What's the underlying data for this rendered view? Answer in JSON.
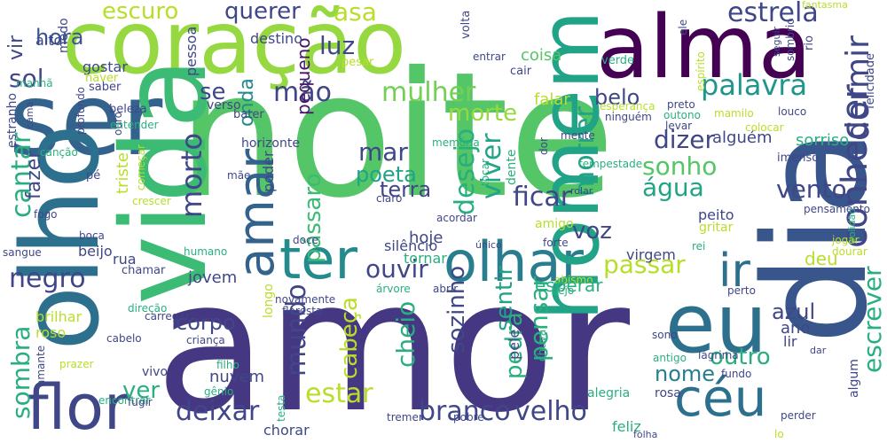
{
  "words": [
    {
      "text": "amor",
      "color": "#453781"
    },
    {
      "text": "noite",
      "color": "#55c667"
    },
    {
      "text": "coração",
      "color": "#95d840"
    },
    {
      "text": "alma",
      "color": "#440154"
    },
    {
      "text": "ser",
      "color": "#33638d"
    },
    {
      "text": "vida",
      "color": "#3cbb75"
    },
    {
      "text": "olho",
      "color": "#2d708e"
    },
    {
      "text": "olhar",
      "color": "#287d8e"
    },
    {
      "text": "ter",
      "color": "#238a8d"
    },
    {
      "text": "eu",
      "color": "#2d708e"
    },
    {
      "text": "dia",
      "color": "#39568c"
    },
    {
      "text": "homem",
      "color": "#20a386"
    },
    {
      "text": "flor",
      "color": "#3f4788"
    },
    {
      "text": "céu",
      "color": "#2d708e"
    },
    {
      "text": "amar",
      "color": "#33638d"
    },
    {
      "text": "ir",
      "color": "#2d708e"
    },
    {
      "text": "mulher",
      "color": "#73d055"
    },
    {
      "text": "palavra",
      "color": "#1f968b"
    },
    {
      "text": "morte",
      "color": "#95d840"
    },
    {
      "text": "mão",
      "color": "#3f4788"
    },
    {
      "text": "estrela",
      "color": "#3f4788"
    },
    {
      "text": "escuro",
      "color": "#b8de29"
    },
    {
      "text": "querer",
      "color": "#3f4788"
    },
    {
      "text": "asa",
      "color": "#b8de29"
    },
    {
      "text": "belo",
      "color": "#3f4788"
    },
    {
      "text": "hora",
      "color": "#39568c"
    },
    {
      "text": "sol",
      "color": "#3f4788"
    },
    {
      "text": "luz",
      "color": "#3f4788"
    },
    {
      "text": "onda",
      "color": "#238a8d"
    },
    {
      "text": "se",
      "color": "#3f4788"
    },
    {
      "text": "vir",
      "color": "#3f4788"
    },
    {
      "text": "alto",
      "color": "#3f4788"
    },
    {
      "text": "pequeno",
      "color": "#481567"
    },
    {
      "text": "dormir",
      "color": "#404788"
    },
    {
      "text": "conhecer",
      "color": "#3f4788"
    },
    {
      "text": "nome",
      "color": "#287d8e"
    },
    {
      "text": "morrer",
      "color": "#20a386"
    },
    {
      "text": "desejo",
      "color": "#29af7f"
    },
    {
      "text": "dizer",
      "color": "#404788"
    },
    {
      "text": "mar",
      "color": "#404788"
    },
    {
      "text": "sonho",
      "color": "#55c667"
    },
    {
      "text": "poeta",
      "color": "#20a386"
    },
    {
      "text": "terra",
      "color": "#404788"
    },
    {
      "text": "viver",
      "color": "#20a386"
    },
    {
      "text": "ficar",
      "color": "#404788"
    },
    {
      "text": "água",
      "color": "#20a386"
    },
    {
      "text": "vento",
      "color": "#404788"
    },
    {
      "text": "pássaro",
      "color": "#3cbb75"
    },
    {
      "text": "morto",
      "color": "#3f4788"
    },
    {
      "text": "cantar",
      "color": "#29af7f"
    },
    {
      "text": "fazer",
      "color": "#3f4788"
    },
    {
      "text": "passar",
      "color": "#b8de29"
    },
    {
      "text": "ouvir",
      "color": "#404788"
    },
    {
      "text": "voz",
      "color": "#404788"
    },
    {
      "text": "deu",
      "color": "#b8de29"
    },
    {
      "text": "negro",
      "color": "#404788"
    },
    {
      "text": "azul",
      "color": "#404788"
    },
    {
      "text": "corpo",
      "color": "#404788"
    },
    {
      "text": "mundo",
      "color": "#404788"
    },
    {
      "text": "cabeça",
      "color": "#b8de29"
    },
    {
      "text": "sozinho",
      "color": "#404788"
    },
    {
      "text": "sentir",
      "color": "#20a386"
    },
    {
      "text": "pensar",
      "color": "#29af7f"
    },
    {
      "text": "outro",
      "color": "#29af7f"
    },
    {
      "text": "escrever",
      "color": "#29af7f"
    },
    {
      "text": "sombra",
      "color": "#29af7f"
    },
    {
      "text": "estar",
      "color": "#b8de29"
    },
    {
      "text": "deixar",
      "color": "#404788"
    },
    {
      "text": "branco",
      "color": "#404788"
    },
    {
      "text": "velho",
      "color": "#404788"
    },
    {
      "text": "ver",
      "color": "#29af7f"
    },
    {
      "text": "cheio",
      "color": "#29af7f"
    },
    {
      "text": "pedra",
      "color": "#29af7f"
    },
    {
      "text": "falar",
      "color": "#b8de29"
    },
    {
      "text": "coisa",
      "color": "#55c667"
    },
    {
      "text": "cair",
      "color": "#404788"
    },
    {
      "text": "verde",
      "color": "#29af7f"
    },
    {
      "text": "volta",
      "color": "#3f4788"
    },
    {
      "text": "destino",
      "color": "#3f4788"
    },
    {
      "text": "pessoa",
      "color": "#3f4788"
    },
    {
      "text": "gostar",
      "color": "#3f4788"
    },
    {
      "text": "haver",
      "color": "#b8de29"
    },
    {
      "text": "saber",
      "color": "#3f4788"
    },
    {
      "text": "medo",
      "color": "#3f4788"
    },
    {
      "text": "manhã",
      "color": "#29af7f"
    },
    {
      "text": "pesar",
      "color": "#b8de29"
    },
    {
      "text": "entrar",
      "color": "#3f4788"
    },
    {
      "text": "ele",
      "color": "#3f4788"
    },
    {
      "text": "espírito",
      "color": "#b8de29"
    },
    {
      "text": "seguir",
      "color": "#3f4788"
    },
    {
      "text": "sombrio",
      "color": "#3f4788"
    },
    {
      "text": "rio",
      "color": "#3f4788"
    },
    {
      "text": "fantasma",
      "color": "#b8de29"
    },
    {
      "text": "felicidade",
      "color": "#3f4788"
    },
    {
      "text": "esperança",
      "color": "#b8de29"
    },
    {
      "text": "ninguém",
      "color": "#3f4788"
    },
    {
      "text": "preto",
      "color": "#3f4788"
    },
    {
      "text": "outono",
      "color": "#29af7f"
    },
    {
      "text": "levar",
      "color": "#3f4788"
    },
    {
      "text": "alguém",
      "color": "#3f4788"
    },
    {
      "text": "mamilo",
      "color": "#b8de29"
    },
    {
      "text": "louco",
      "color": "#3f4788"
    },
    {
      "text": "colocar",
      "color": "#b8de29"
    },
    {
      "text": "verso",
      "color": "#3f4788"
    },
    {
      "text": "bater",
      "color": "#3f4788"
    },
    {
      "text": "beleza",
      "color": "#3f4788"
    },
    {
      "text": "profundo",
      "color": "#3f4788"
    },
    {
      "text": "ouro",
      "color": "#3f4788"
    },
    {
      "text": "entender",
      "color": "#29af7f"
    },
    {
      "text": "estranho",
      "color": "#3f4788"
    },
    {
      "text": "cama",
      "color": "#3f4788"
    },
    {
      "text": "canção",
      "color": "#29af7f"
    },
    {
      "text": "começar",
      "color": "#b8de29"
    },
    {
      "text": "horizonte",
      "color": "#3f4788"
    },
    {
      "text": "memória",
      "color": "#29af7f"
    },
    {
      "text": "dor",
      "color": "#3f4788"
    },
    {
      "text": "mente",
      "color": "#3f4788"
    },
    {
      "text": "sorriso",
      "color": "#29af7f"
    },
    {
      "text": "imenso",
      "color": "#3f4788"
    },
    {
      "text": "pé",
      "color": "#3f4788"
    },
    {
      "text": "triste",
      "color": "#b8de29"
    },
    {
      "text": "mãe",
      "color": "#3f4788"
    },
    {
      "text": "poder",
      "color": "#3f4788"
    },
    {
      "text": "dente",
      "color": "#29af7f"
    },
    {
      "text": "tocar",
      "color": "#29af7f"
    },
    {
      "text": "tempestade",
      "color": "#29af7f"
    },
    {
      "text": "rolar",
      "color": "#3f4788"
    },
    {
      "text": "claro",
      "color": "#3f4788"
    },
    {
      "text": "crescer",
      "color": "#b8de29"
    },
    {
      "text": "fogo",
      "color": "#3f4788"
    },
    {
      "text": "pensamento",
      "color": "#3f4788"
    },
    {
      "text": "solidão",
      "color": "#29af7f"
    },
    {
      "text": "acordar",
      "color": "#3f4788"
    },
    {
      "text": "amigo",
      "color": "#b8de29"
    },
    {
      "text": "peito",
      "color": "#3f4788"
    },
    {
      "text": "gritar",
      "color": "#b8de29"
    },
    {
      "text": "boca",
      "color": "#3f4788"
    },
    {
      "text": "beijo",
      "color": "#3f4788"
    },
    {
      "text": "sangue",
      "color": "#3f4788"
    },
    {
      "text": "doce",
      "color": "#3f4788"
    },
    {
      "text": "humano",
      "color": "#29af7f"
    },
    {
      "text": "silêncio",
      "color": "#3f4788"
    },
    {
      "text": "hoje",
      "color": "#3f4788"
    },
    {
      "text": "tornar",
      "color": "#29af7f"
    },
    {
      "text": "único",
      "color": "#3f4788"
    },
    {
      "text": "forte",
      "color": "#3f4788"
    },
    {
      "text": "rei",
      "color": "#29af7f"
    },
    {
      "text": "virgem",
      "color": "#3f4788"
    },
    {
      "text": "jogar",
      "color": "#b8de29"
    },
    {
      "text": "dourar",
      "color": "#b8de29"
    },
    {
      "text": "rua",
      "color": "#3f4788"
    },
    {
      "text": "chamar",
      "color": "#3f4788"
    },
    {
      "text": "jovem",
      "color": "#3f4788"
    },
    {
      "text": "árvore",
      "color": "#29af7f"
    },
    {
      "text": "longo",
      "color": "#b8de29"
    },
    {
      "text": "abismo",
      "color": "#b8de29"
    },
    {
      "text": "esperar",
      "color": "#29af7f"
    },
    {
      "text": "perto",
      "color": "#3f4788"
    },
    {
      "text": "novamente",
      "color": "#3f4788"
    },
    {
      "text": "floresta",
      "color": "#3f4788"
    },
    {
      "text": "abrir",
      "color": "#3f4788"
    },
    {
      "text": "vejo",
      "color": "#29af7f"
    },
    {
      "text": "direção",
      "color": "#29af7f"
    },
    {
      "text": "carregar",
      "color": "#3f4788"
    },
    {
      "text": "brilhar",
      "color": "#b8de29"
    },
    {
      "text": "roso",
      "color": "#b8de29"
    },
    {
      "text": "cabelo",
      "color": "#3f4788"
    },
    {
      "text": "criança",
      "color": "#3f4788"
    },
    {
      "text": "sono",
      "color": "#3f4788"
    },
    {
      "text": "ano",
      "color": "#3f4788"
    },
    {
      "text": "lir",
      "color": "#3f4788"
    },
    {
      "text": "amante",
      "color": "#3f4788"
    },
    {
      "text": "prazer",
      "color": "#b8de29"
    },
    {
      "text": "vivo",
      "color": "#3f4788"
    },
    {
      "text": "filho",
      "color": "#29af7f"
    },
    {
      "text": "pele",
      "color": "#3f4788"
    },
    {
      "text": "chuva",
      "color": "#29af7f"
    },
    {
      "text": "antigo",
      "color": "#29af7f"
    },
    {
      "text": "lágrima",
      "color": "#3f4788"
    },
    {
      "text": "dar",
      "color": "#3f4788"
    },
    {
      "text": "nuvem",
      "color": "#3f4788"
    },
    {
      "text": "gênio",
      "color": "#29af7f"
    },
    {
      "text": "algum",
      "color": "#3f4788"
    },
    {
      "text": "fundo",
      "color": "#3f4788"
    },
    {
      "text": "encontrar",
      "color": "#29af7f"
    },
    {
      "text": "fugir",
      "color": "#3f4788"
    },
    {
      "text": "testa",
      "color": "#29af7f"
    },
    {
      "text": "tremer",
      "color": "#3f4788"
    },
    {
      "text": "alegria",
      "color": "#29af7f"
    },
    {
      "text": "rosa",
      "color": "#3f4788"
    },
    {
      "text": "feliz",
      "color": "#29af7f"
    },
    {
      "text": "chorar",
      "color": "#3f4788"
    },
    {
      "text": "pobre",
      "color": "#3f4788"
    },
    {
      "text": "perder",
      "color": "#404788"
    },
    {
      "text": "folha",
      "color": "#3f4788"
    },
    {
      "text": "lo",
      "color": "#b8de29"
    },
    {
      "text": "grito",
      "color": "#3f4788"
    },
    {
      "text": "braço",
      "color": "#3f4788"
    }
  ]
}
